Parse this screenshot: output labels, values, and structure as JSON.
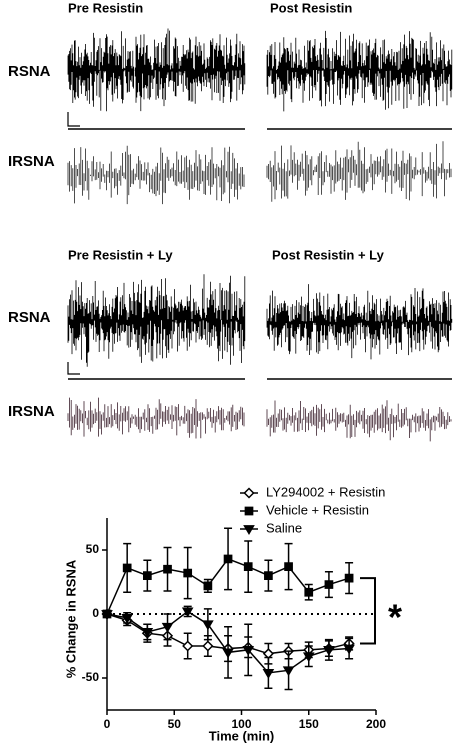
{
  "traces": {
    "top_left_title": "Pre Resistin",
    "top_right_title": "Post Resistin",
    "top_rsna_label": "RSNA",
    "top_irsna_label": "IRSNA",
    "bottom_left_title": "Pre Resistin  + Ly",
    "bottom_right_title": "Post Resistin + Ly",
    "bottom_rsna_label": "RSNA",
    "bottom_irsna_label": "IRSNA"
  },
  "chart_data": {
    "type": "line",
    "xlabel": "Time (min)",
    "ylabel": "% Change in RSNA",
    "x": [
      0,
      15,
      30,
      45,
      60,
      75,
      90,
      105,
      120,
      135,
      150,
      165,
      180
    ],
    "series": [
      {
        "name": "LY294002 + Resistin",
        "color": "#000000",
        "marker": "diamond",
        "values": [
          0,
          -5,
          -15,
          -17,
          -25,
          -25,
          -27,
          -26,
          -31,
          -29,
          -28,
          -27,
          -23
        ],
        "errors": [
          0,
          4,
          7,
          8,
          10,
          8,
          10,
          8,
          8,
          6,
          6,
          6,
          5
        ]
      },
      {
        "name": "Vehicle + Resistin",
        "color": "#000000",
        "marker": "square",
        "values": [
          0,
          36,
          30,
          35,
          32,
          22,
          43,
          37,
          30,
          37,
          17,
          23,
          28
        ],
        "errors": [
          0,
          19,
          12,
          17,
          20,
          5,
          24,
          20,
          12,
          18,
          6,
          10,
          12
        ]
      },
      {
        "name": "Saline",
        "color": "#000000",
        "marker": "triangle-down",
        "values": [
          0,
          -3,
          -14,
          -10,
          2,
          -8,
          -30,
          -28,
          -46,
          -44,
          -33,
          -28,
          -27
        ],
        "errors": [
          0,
          4,
          6,
          10,
          4,
          12,
          20,
          20,
          12,
          15,
          8,
          8,
          8
        ]
      }
    ],
    "xlim": [
      0,
      200
    ],
    "xticks": [
      0,
      50,
      100,
      150,
      200
    ],
    "ylim": [
      -75,
      75
    ],
    "yticks": [
      -50,
      0,
      50
    ],
    "reference_line": 0,
    "annotation": "*"
  }
}
